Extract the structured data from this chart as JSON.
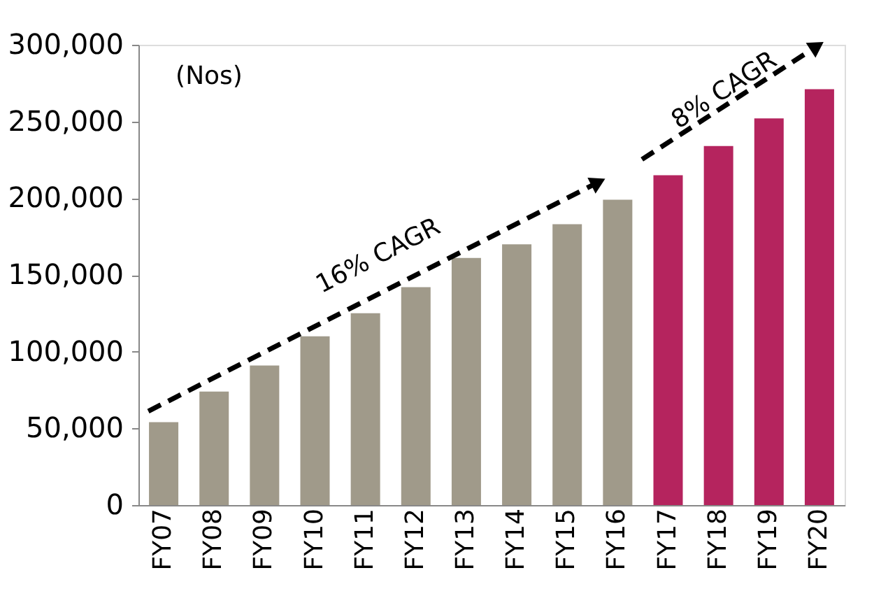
{
  "chart_data": {
    "type": "bar",
    "categories": [
      "FY07",
      "FY08",
      "FY09",
      "FY10",
      "FY11",
      "FY12",
      "FY13",
      "FY14",
      "FY15",
      "FY16",
      "FY17",
      "FY18",
      "FY19",
      "FY20"
    ],
    "values": [
      54000,
      74000,
      91000,
      110000,
      125000,
      142000,
      161000,
      170000,
      183000,
      199000,
      215000,
      234000,
      252000,
      271000
    ],
    "colors": [
      "#a09a8a",
      "#a09a8a",
      "#a09a8a",
      "#a09a8a",
      "#a09a8a",
      "#a09a8a",
      "#a09a8a",
      "#a09a8a",
      "#a09a8a",
      "#a09a8a",
      "#b5245e",
      "#b5245e",
      "#b5245e",
      "#b5245e"
    ],
    "ylim": [
      0,
      300000
    ],
    "yticks": [
      0,
      {
        "value": 50000,
        "label": "50,000"
      },
      {
        "value": 100000,
        "label": "100,000"
      },
      {
        "value": 150000,
        "label": "150,000"
      },
      {
        "value": 200000,
        "label": "200,000"
      },
      {
        "value": 250000,
        "label": "250,000"
      },
      {
        "value": 300000,
        "label": "300,000"
      }
    ],
    "grid": false,
    "annotations": [
      "(Nos)",
      "16% CAGR",
      "8% CAGR"
    ]
  }
}
